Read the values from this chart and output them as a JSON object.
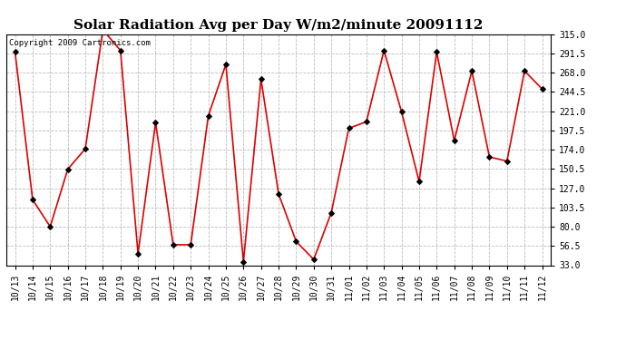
{
  "title": "Solar Radiation Avg per Day W/m2/minute 20091112",
  "copyright": "Copyright 2009 Cartronics.com",
  "x_labels": [
    "10/13",
    "10/14",
    "10/15",
    "10/16",
    "10/17",
    "10/18",
    "10/19",
    "10/20",
    "10/21",
    "10/22",
    "10/23",
    "10/24",
    "10/25",
    "10/26",
    "10/27",
    "10/28",
    "10/29",
    "10/30",
    "10/31",
    "11/01",
    "11/02",
    "11/03",
    "11/04",
    "11/05",
    "11/06",
    "11/07",
    "11/08",
    "11/09",
    "11/10",
    "11/11",
    "11/12"
  ],
  "y_values": [
    293,
    113,
    80,
    150,
    175,
    320,
    295,
    47,
    207,
    58,
    58,
    215,
    278,
    37,
    260,
    120,
    62,
    40,
    97,
    200,
    208,
    295,
    220,
    135,
    293,
    185,
    270,
    165,
    160,
    270,
    248
  ],
  "y_ticks": [
    33.0,
    56.5,
    80.0,
    103.5,
    127.0,
    150.5,
    174.0,
    197.5,
    221.0,
    244.5,
    268.0,
    291.5,
    315.0
  ],
  "ylim": [
    33.0,
    315.0
  ],
  "line_color": "#dd0000",
  "marker_color": "#000000",
  "background_color": "#ffffff",
  "grid_color": "#bbbbbb",
  "title_fontsize": 11,
  "tick_fontsize": 7,
  "copyright_fontsize": 6.5
}
